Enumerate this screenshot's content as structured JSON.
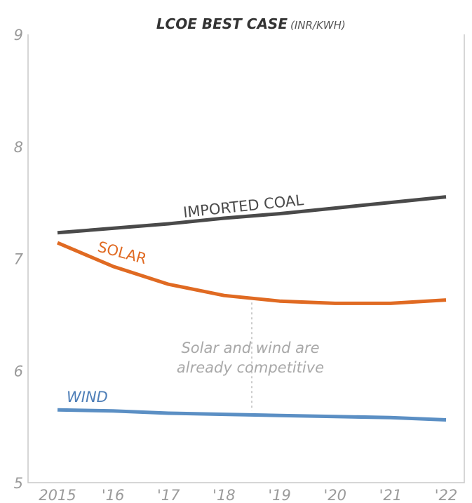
{
  "chart_data": {
    "type": "line",
    "title": "LCOE BEST CASE",
    "title_unit": "(INR/KWH)",
    "categories": [
      "2015",
      "'16",
      "'17",
      "'18",
      "'19",
      "'20",
      "'21",
      "'22"
    ],
    "ylim": [
      5,
      9
    ],
    "yticks": [
      "9",
      "8",
      "7",
      "6",
      "5"
    ],
    "grid": false,
    "series": [
      {
        "name": "IMPORTED COAL",
        "color": "#4a4a4a",
        "values": [
          7.23,
          7.27,
          7.31,
          7.36,
          7.4,
          7.45,
          7.5,
          7.55
        ]
      },
      {
        "name": "SOLAR",
        "color": "#e06a22",
        "values": [
          7.14,
          6.93,
          6.77,
          6.67,
          6.62,
          6.6,
          6.6,
          6.63
        ]
      },
      {
        "name": "WIND",
        "color": "#5b8fc4",
        "values": [
          5.65,
          5.64,
          5.62,
          5.61,
          5.6,
          5.59,
          5.58,
          5.56
        ]
      }
    ],
    "annotation": {
      "lines": [
        "Solar and wind are",
        "already competitive"
      ],
      "x_between": [
        "'18",
        "'19"
      ]
    }
  }
}
